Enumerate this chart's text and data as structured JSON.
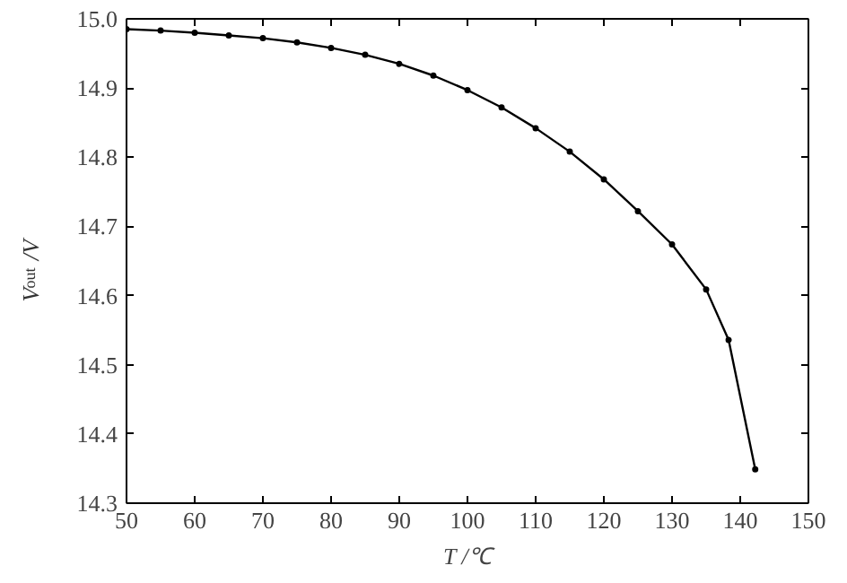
{
  "chart_data": {
    "type": "line",
    "xlabel": "T /℃",
    "ylabel": "V$_{out}$ /V",
    "x": [
      50,
      55,
      60,
      65,
      70,
      75,
      80,
      85,
      90,
      95,
      100,
      105,
      110,
      115,
      120,
      125,
      130,
      135,
      138.3,
      142.2
    ],
    "series": [
      {
        "color": "#000000",
        "values": [
          14.985,
          14.983,
          14.98,
          14.976,
          14.972,
          14.966,
          14.958,
          14.948,
          14.935,
          14.918,
          14.897,
          14.872,
          14.842,
          14.808,
          14.768,
          14.722,
          14.674,
          14.609,
          14.536,
          14.349
        ]
      }
    ],
    "xlim": [
      50,
      150
    ],
    "xticks": [
      50,
      60,
      70,
      80,
      90,
      100,
      110,
      120,
      130,
      140,
      150
    ],
    "ylim": [
      14.3,
      15.0
    ],
    "yticks": [
      14.3,
      14.4,
      14.5,
      14.6,
      14.7,
      14.8,
      14.9,
      {
        "value": 15.0,
        "label": "15.0"
      }
    ],
    "grid": false,
    "marker": "circle",
    "line_style": "solid"
  }
}
